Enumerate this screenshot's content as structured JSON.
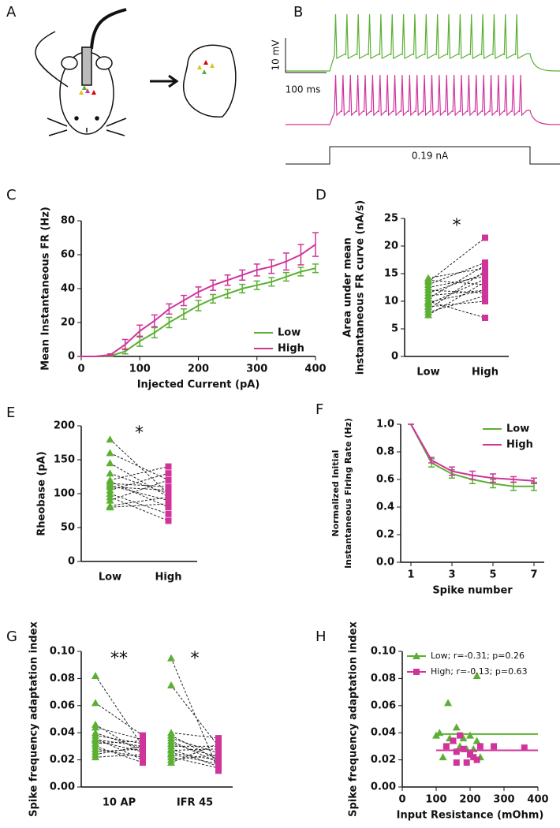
{
  "panel_a": {
    "label": "A"
  },
  "panel_b": {
    "label": "B",
    "voltage_scale": "10 mV",
    "time_scale": "100 ms",
    "current": "0.19 nA"
  },
  "chart_data": [
    {
      "panel": "C",
      "type": "line",
      "x_label": "Injected Current (pA)",
      "y_label": "Mean Instantaneous FR (Hz)",
      "x": [
        0,
        25,
        50,
        75,
        100,
        125,
        150,
        175,
        200,
        225,
        250,
        275,
        300,
        325,
        350,
        375,
        400
      ],
      "xlim": [
        0,
        400
      ],
      "xticks": [
        0,
        100,
        200,
        300,
        400
      ],
      "ylim": [
        0,
        80
      ],
      "yticks": [
        0,
        20,
        40,
        60,
        80
      ],
      "legend": "lower right",
      "series": [
        {
          "name": "Low",
          "color": "#5bb033",
          "values": [
            0,
            0,
            0.3,
            3,
            9,
            14,
            20,
            25,
            30,
            34,
            37,
            40,
            42,
            44,
            47,
            50,
            52
          ],
          "errors": [
            0,
            0,
            0.3,
            1.5,
            3,
            3,
            3,
            3,
            3,
            2.5,
            2.5,
            2.5,
            2.5,
            2.5,
            2.5,
            2.5,
            2.5
          ]
        },
        {
          "name": "High",
          "color": "#d0349b",
          "values": [
            0,
            0,
            1,
            7,
            15,
            21,
            28,
            33,
            38,
            42,
            45,
            48,
            51,
            53,
            56,
            60,
            66
          ],
          "errors": [
            0,
            0,
            0.5,
            3,
            3.5,
            3.5,
            3,
            3,
            3,
            3,
            3,
            3,
            3.5,
            4,
            5,
            6,
            7
          ]
        }
      ]
    },
    {
      "panel": "D",
      "type": "paired",
      "y_label": [
        "Area under mean",
        "instantaneous FR curve (nA/s)"
      ],
      "ylim": [
        0,
        25
      ],
      "yticks": [
        0,
        5,
        10,
        15,
        20,
        25
      ],
      "groups": [
        {
          "annotation": "*",
          "series": [
            {
              "name": "Low",
              "color": "#5bb033",
              "marker": "triangle",
              "values": [
                14.2,
                13.8,
                13.5,
                13,
                12.5,
                12,
                11.5,
                11,
                10.5,
                10,
                9.8,
                9.5,
                9,
                8.5,
                8,
                7.5
              ]
            },
            {
              "name": "High",
              "color": "#d0349b",
              "marker": "square",
              "values": [
                16,
                13,
                21.5,
                17,
                14.5,
                11.5,
                15,
                12,
                16.5,
                7,
                12,
                14,
                10,
                15.5,
                11,
                13.5
              ]
            }
          ]
        }
      ]
    },
    {
      "panel": "E",
      "type": "paired",
      "y_label": "Rheobase (pA)",
      "ylim": [
        0,
        200
      ],
      "yticks": [
        0,
        50,
        100,
        150,
        200
      ],
      "groups": [
        {
          "annotation": "*",
          "series": [
            {
              "name": "Low",
              "color": "#5bb033",
              "marker": "triangle",
              "values": [
                180,
                160,
                145,
                130,
                120,
                118,
                115,
                112,
                110,
                105,
                100,
                95,
                90,
                82,
                80
              ]
            },
            {
              "name": "High",
              "color": "#d0349b",
              "marker": "square",
              "values": [
                100,
                120,
                95,
                100,
                140,
                80,
                110,
                90,
                105,
                130,
                70,
                60,
                120,
                95,
                85
              ]
            }
          ]
        }
      ]
    },
    {
      "panel": "F",
      "type": "line",
      "x_label": "Spike number",
      "y_label": [
        "Normalized Initial",
        "Instantaneous Firing Rate (Hz)"
      ],
      "x": [
        1,
        2,
        3,
        4,
        5,
        6,
        7
      ],
      "xlim": [
        0.5,
        7.5
      ],
      "xticks": [
        1,
        3,
        5,
        7
      ],
      "ylim": [
        0,
        1
      ],
      "yticks": [
        {
          "value": 0,
          "label": "0.0"
        },
        0.2,
        0.4,
        0.6,
        0.8,
        {
          "value": 1,
          "label": "1.0"
        }
      ],
      "legend": "upper right",
      "series": [
        {
          "name": "Low",
          "color": "#5bb033",
          "values": [
            1,
            0.72,
            0.64,
            0.6,
            0.57,
            0.55,
            0.55
          ],
          "errors": [
            0,
            0.03,
            0.03,
            0.03,
            0.03,
            0.03,
            0.03
          ]
        },
        {
          "name": "High",
          "color": "#d0349b",
          "values": [
            1,
            0.74,
            0.66,
            0.63,
            0.61,
            0.6,
            0.59
          ],
          "errors": [
            0,
            0.02,
            0.03,
            0.03,
            0.03,
            0.02,
            0.02
          ]
        }
      ]
    },
    {
      "panel": "G",
      "type": "paired",
      "y_label": "Spike frequency adaptation index",
      "ylim": [
        0,
        0.1
      ],
      "yticks": [
        {
          "value": 0,
          "label": "0.00"
        },
        0.02,
        0.04,
        0.06,
        0.08,
        {
          "value": 0.1,
          "label": "0.10"
        }
      ],
      "groups": [
        {
          "label": "10 AP",
          "annotation": "**",
          "series": [
            {
              "color": "#5bb033",
              "marker": "triangle",
              "values": [
                0.082,
                0.062,
                0.046,
                0.044,
                0.04,
                0.038,
                0.036,
                0.035,
                0.034,
                0.032,
                0.03,
                0.028,
                0.026,
                0.024,
                0.022
              ]
            },
            {
              "color": "#d0349b",
              "marker": "square",
              "values": [
                0.03,
                0.038,
                0.025,
                0.035,
                0.028,
                0.032,
                0.02,
                0.03,
                0.026,
                0.034,
                0.018,
                0.022,
                0.028,
                0.03,
                0.024
              ]
            }
          ]
        },
        {
          "label": "IFR 45",
          "annotation": "*",
          "series": [
            {
              "color": "#5bb033",
              "marker": "triangle",
              "values": [
                0.095,
                0.075,
                0.04,
                0.038,
                0.036,
                0.034,
                0.032,
                0.03,
                0.028,
                0.027,
                0.025,
                0.024,
                0.022,
                0.02,
                0.018
              ]
            },
            {
              "color": "#d0349b",
              "marker": "square",
              "values": [
                0.012,
                0.03,
                0.036,
                0.02,
                0.025,
                0.018,
                0.022,
                0.03,
                0.015,
                0.028,
                0.02,
                0.017,
                0.014,
                0.024,
                0.032
              ]
            }
          ]
        }
      ]
    },
    {
      "panel": "H",
      "type": "scatter",
      "x_label": "Input Resistance (mOhm)",
      "y_label": "Spike frequency adaptation index",
      "xlim": [
        0,
        400
      ],
      "xticks": [
        0,
        100,
        200,
        300,
        400
      ],
      "ylim": [
        0,
        0.1
      ],
      "yticks": [
        {
          "value": 0,
          "label": "0.00"
        },
        0.02,
        0.04,
        0.06,
        0.08,
        {
          "value": 0.1,
          "label": "0.10"
        }
      ],
      "legend": "upper left",
      "series": [
        {
          "name": "Low; r=-0.31; p=0.26",
          "color": "#5bb033",
          "marker": "triangle",
          "x": [
            100,
            110,
            120,
            135,
            140,
            150,
            160,
            170,
            180,
            190,
            200,
            210,
            220,
            220,
            230
          ],
          "values": [
            0.038,
            0.04,
            0.022,
            0.062,
            0.036,
            0.034,
            0.044,
            0.03,
            0.036,
            0.028,
            0.038,
            0.028,
            0.082,
            0.034,
            0.022
          ],
          "fit": {
            "x": [
              100,
              400
            ],
            "values": [
              0.039,
              0.039
            ]
          }
        },
        {
          "name": "High; r=-0.13; p=0.63",
          "color": "#d0349b",
          "marker": "square",
          "x": [
            130,
            150,
            160,
            160,
            170,
            180,
            190,
            200,
            210,
            220,
            230,
            270,
            360
          ],
          "values": [
            0.03,
            0.034,
            0.018,
            0.026,
            0.038,
            0.028,
            0.018,
            0.024,
            0.022,
            0.02,
            0.03,
            0.03,
            0.029
          ],
          "fit": {
            "x": [
              100,
              400
            ],
            "values": [
              0.027,
              0.027
            ]
          }
        }
      ]
    }
  ]
}
